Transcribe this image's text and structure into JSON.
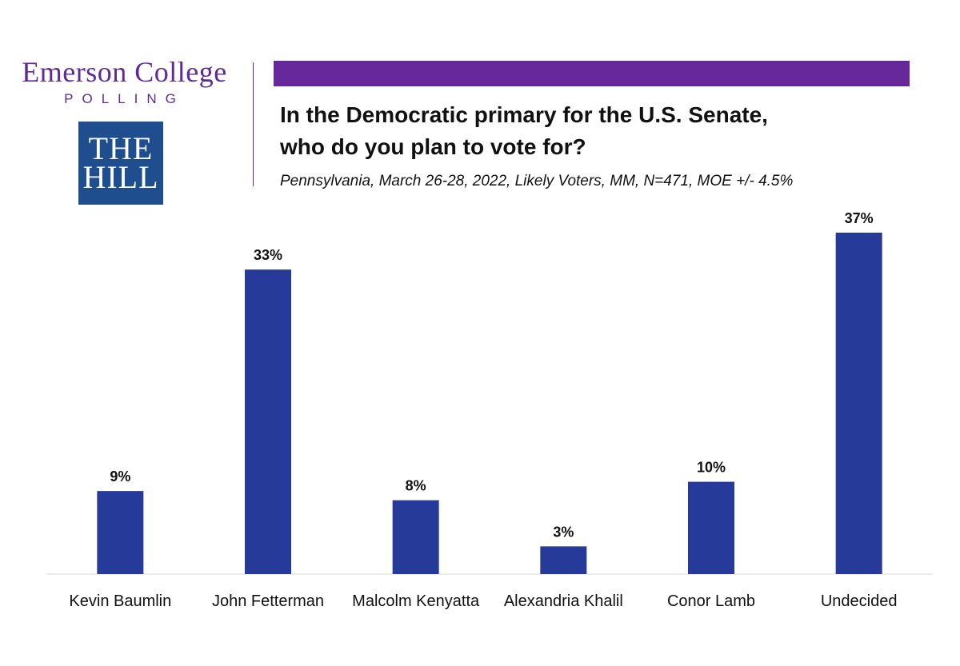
{
  "branding": {
    "emerson_line1": "Emerson College",
    "emerson_line2": "POLLING",
    "hill_line1": "THE",
    "hill_line2": "HILL"
  },
  "header": {
    "title_line1": "In the Democratic primary for the U.S. Senate,",
    "title_line2": "who do you plan to vote for?",
    "subtitle": "Pennsylvania, March 26-28, 2022, Likely Voters, MM, N=471, MOE +/- 4.5%"
  },
  "colors": {
    "bar": "#263a9a",
    "brand_purple": "#66289b",
    "hill_blue": "#1f4e8f"
  },
  "chart_data": {
    "type": "bar",
    "categories": [
      "Kevin Baumlin",
      "John Fetterman",
      "Malcolm Kenyatta",
      "Alexandria Khalil",
      "Conor Lamb",
      "Undecided"
    ],
    "values": [
      9,
      33,
      8,
      3,
      10,
      37
    ],
    "data_labels": [
      "9%",
      "33%",
      "8%",
      "3%",
      "10%",
      "37%"
    ],
    "title": "In the Democratic primary for the U.S. Senate, who do you plan to vote for?",
    "xlabel": "",
    "ylabel": "",
    "ylim": [
      0,
      37
    ],
    "grid": false,
    "legend": "none"
  }
}
